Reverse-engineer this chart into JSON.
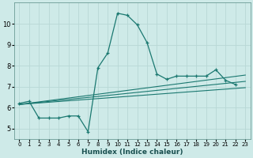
{
  "xlabel": "Humidex (Indice chaleur)",
  "bg_color": "#ceeae8",
  "line_color": "#1a7870",
  "grid_color": "#b8d8d5",
  "xlim": [
    -0.5,
    23.5
  ],
  "ylim": [
    4.5,
    11.0
  ],
  "xticks": [
    0,
    1,
    2,
    3,
    4,
    5,
    6,
    7,
    8,
    9,
    10,
    11,
    12,
    13,
    14,
    15,
    16,
    17,
    18,
    19,
    20,
    21,
    22,
    23
  ],
  "yticks": [
    5,
    6,
    7,
    8,
    9,
    10
  ],
  "lines": [
    {
      "x": [
        0,
        1,
        2,
        3,
        4,
        5,
        6,
        7,
        8,
        9,
        10,
        11,
        12,
        13,
        14,
        15,
        16,
        17,
        18,
        19,
        20,
        21,
        22
      ],
      "y": [
        6.2,
        6.3,
        5.5,
        5.5,
        5.5,
        5.6,
        5.6,
        4.85,
        7.9,
        8.6,
        10.5,
        10.4,
        9.95,
        9.1,
        7.6,
        7.35,
        7.5,
        7.5,
        7.5,
        7.5,
        7.8,
        7.3,
        7.1
      ]
    },
    {
      "x": [
        0,
        23
      ],
      "y": [
        6.15,
        7.55
      ]
    },
    {
      "x": [
        0,
        23
      ],
      "y": [
        6.15,
        7.25
      ]
    },
    {
      "x": [
        0,
        23
      ],
      "y": [
        6.15,
        6.95
      ]
    }
  ]
}
